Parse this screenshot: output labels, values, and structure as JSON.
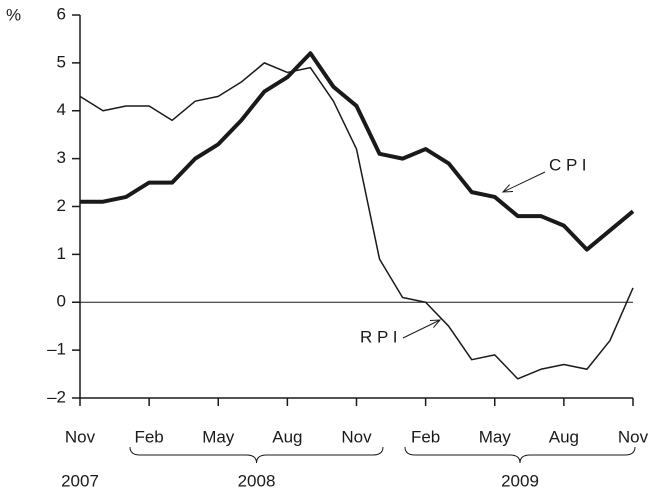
{
  "chart_data": {
    "type": "line",
    "y_unit": "%",
    "categories": [
      "Nov",
      null,
      null,
      "Feb",
      null,
      null,
      "May",
      null,
      null,
      "Aug",
      null,
      null,
      "Nov",
      null,
      null,
      "Feb",
      null,
      null,
      "May",
      null,
      null,
      "Aug",
      null,
      null,
      "Nov"
    ],
    "year_labels": [
      "2007",
      "2008",
      "2009"
    ],
    "series": [
      {
        "name": "C P I",
        "color": "#1a1a1a",
        "width": 4,
        "values": [
          2.1,
          2.1,
          2.2,
          2.5,
          2.5,
          3.0,
          3.3,
          3.8,
          4.4,
          4.7,
          5.2,
          4.5,
          4.1,
          3.1,
          3.0,
          3.2,
          2.9,
          2.3,
          2.2,
          1.8,
          1.8,
          1.6,
          1.1,
          1.5,
          1.9
        ]
      },
      {
        "name": "R P I",
        "color": "#1a1a1a",
        "width": 1.5,
        "values": [
          4.3,
          4.0,
          4.1,
          4.1,
          3.8,
          4.2,
          4.3,
          4.6,
          5.0,
          4.8,
          4.9,
          4.2,
          3.2,
          0.9,
          0.1,
          0.0,
          -0.5,
          -1.2,
          -1.1,
          -1.6,
          -1.4,
          -1.3,
          -1.4,
          -0.8,
          0.3
        ]
      }
    ],
    "ylim": [
      -2,
      6
    ],
    "yticks": [
      {
        "value": -2,
        "label": "–2"
      },
      {
        "value": -1,
        "label": "–1"
      },
      0,
      1,
      2,
      3,
      4,
      5,
      6
    ],
    "zero_line": true
  }
}
